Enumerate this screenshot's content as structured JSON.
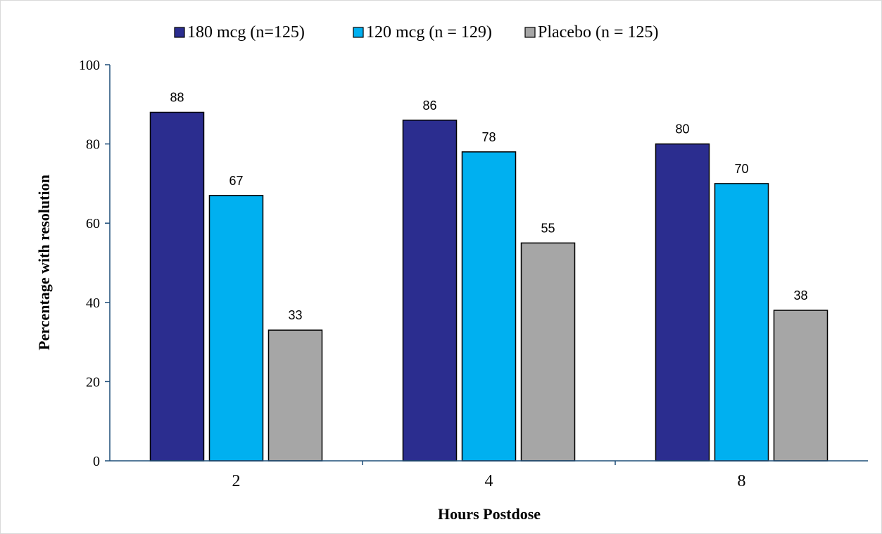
{
  "chart_data": {
    "type": "bar",
    "title": "",
    "xlabel": "Hours Postdose",
    "ylabel": "Percentage with resolution",
    "categories": [
      "2",
      "4",
      "8"
    ],
    "series": [
      {
        "name": "180 mcg (n=125)",
        "values": [
          88,
          86,
          80
        ],
        "color": "#2b2d8f"
      },
      {
        "name": "120 mcg (n = 129)",
        "values": [
          67,
          78,
          70
        ],
        "color": "#00b0f0"
      },
      {
        "name": "Placebo (n = 125)",
        "values": [
          33,
          55,
          38
        ],
        "color": "#a6a6a6"
      }
    ],
    "ylim": [
      0,
      100
    ],
    "yticks": [
      "0",
      "20",
      "40",
      "60",
      "80",
      "100"
    ],
    "grid": false,
    "legend_position": "top",
    "data_labels": true,
    "axis_color": "#1f4e79"
  }
}
